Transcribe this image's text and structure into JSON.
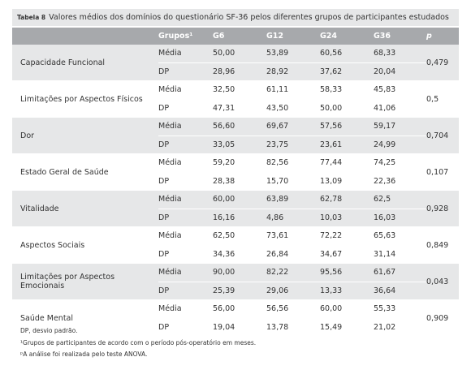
{
  "header": {
    "label": "Tabela 8",
    "title": "Valores médios dos domínios do questionário SF-36 pelos diferentes grupos de participantes estudados"
  },
  "table": {
    "columns": [
      "Grupos¹",
      "G6",
      "G12",
      "G24",
      "G36",
      "p"
    ],
    "rows": [
      {
        "name": "Capacidade Funcional",
        "mean": {
          "label": "Média",
          "values": [
            "50,00",
            "53,89",
            "60,56",
            "68,33"
          ]
        },
        "sd": {
          "label": "DP",
          "values": [
            "28,96",
            "28,92",
            "37,62",
            "20,04"
          ]
        },
        "p": "0,479"
      },
      {
        "name": "Limitações por Aspectos Físicos",
        "mean": {
          "label": "Média",
          "values": [
            "32,50",
            "61,11",
            "58,33",
            "45,83"
          ]
        },
        "sd": {
          "label": "DP",
          "values": [
            "47,31",
            "43,50",
            "50,00",
            "41,06"
          ]
        },
        "p": "0,5"
      },
      {
        "name": "Dor",
        "mean": {
          "label": "Média",
          "values": [
            "56,60",
            "69,67",
            "57,56",
            "59,17"
          ]
        },
        "sd": {
          "label": "DP",
          "values": [
            "33,05",
            "23,75",
            "23,61",
            "24,99"
          ]
        },
        "p": "0,704"
      },
      {
        "name": "Estado Geral de Saúde",
        "mean": {
          "label": "Média",
          "values": [
            "59,20",
            "82,56",
            "77,44",
            "74,25"
          ]
        },
        "sd": {
          "label": "DP",
          "values": [
            "28,38",
            "15,70",
            "13,09",
            "22,36"
          ]
        },
        "p": "0,107"
      },
      {
        "name": "Vitalidade",
        "mean": {
          "label": "Média",
          "values": [
            "60,00",
            "63,89",
            "62,78",
            "62,5"
          ]
        },
        "sd": {
          "label": "DP",
          "values": [
            "16,16",
            "4,86",
            "10,03",
            "16,03"
          ]
        },
        "p": "0,928"
      },
      {
        "name": "Aspectos Sociais",
        "mean": {
          "label": "Média",
          "values": [
            "62,50",
            "73,61",
            "72,22",
            "65,63"
          ]
        },
        "sd": {
          "label": "DP",
          "values": [
            "34,36",
            "26,84",
            "34,67",
            "31,14"
          ]
        },
        "p": "0,849"
      },
      {
        "name": "Limitações por Aspectos Emocionais",
        "mean": {
          "label": "Média",
          "values": [
            "90,00",
            "82,22",
            "95,56",
            "61,67"
          ]
        },
        "sd": {
          "label": "DP",
          "values": [
            "25,39",
            "29,06",
            "13,33",
            "36,64"
          ]
        },
        "p": "0,043"
      },
      {
        "name": "Saúde Mental",
        "mean": {
          "label": "Média",
          "values": [
            "56,00",
            "56,56",
            "60,00",
            "55,33"
          ]
        },
        "sd": {
          "label": "DP",
          "values": [
            "19,04",
            "13,78",
            "15,49",
            "21,02"
          ]
        },
        "p": "0,909"
      }
    ]
  },
  "footnotes": [
    "DP, desvio padrão.",
    "¹Grupos de participantes de acordo com o período pós-operatório em meses.",
    "ᵖA análise foi realizada pelo teste ANOVA."
  ]
}
